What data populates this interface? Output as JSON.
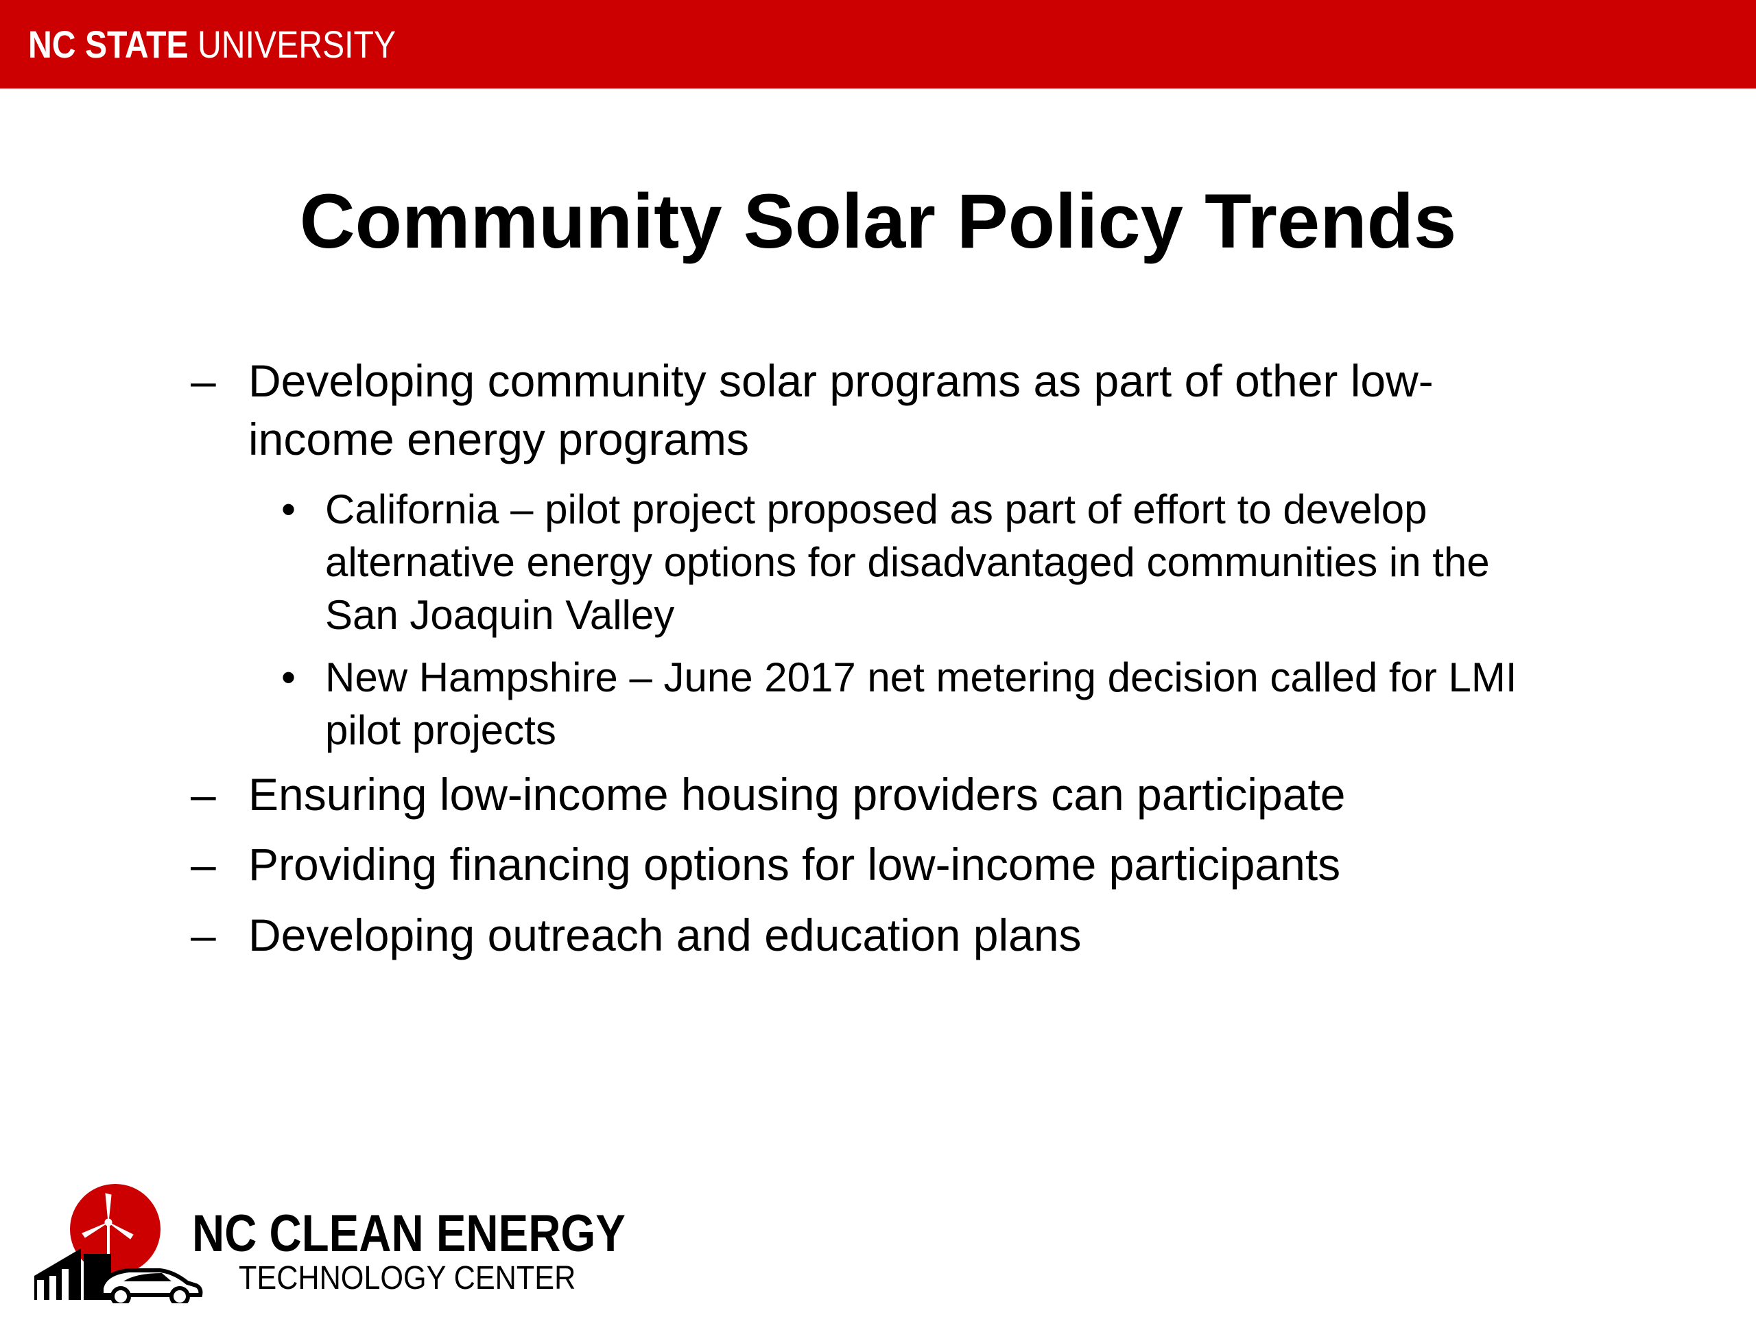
{
  "header": {
    "university_bold": "NC STATE",
    "university_regular": " UNIVERSITY",
    "bar_color": "#cc0000"
  },
  "slide": {
    "title": "Community Solar Policy Trends",
    "bullets": [
      {
        "marker": "–",
        "text": "Developing community solar programs as part of other low-income energy programs",
        "line1": "Developing community solar programs as part of other low-",
        "line2": "income energy programs",
        "sub": [
          {
            "marker": "•",
            "line1": "California – pilot project proposed as part of effort to develop",
            "line2": "alternative energy options for disadvantaged communities in the",
            "line3": "San Joaquin Valley"
          },
          {
            "marker": "•",
            "line1": "New Hampshire – June 2017 net metering decision called for LMI",
            "line2": "pilot projects"
          }
        ]
      },
      {
        "marker": "–",
        "text": "Ensuring low-income housing providers can participate"
      },
      {
        "marker": "–",
        "text": "Providing financing options for low-income participants"
      },
      {
        "marker": "–",
        "text": "Developing outreach and education plans"
      }
    ]
  },
  "footer_logo": {
    "line1": "NC CLEAN ENERGY",
    "line2": "TECHNOLOGY CENTER",
    "icon_names": [
      "sun-icon",
      "wind-turbine-icon",
      "building-icon",
      "car-icon"
    ],
    "accent_color": "#cc0000"
  }
}
